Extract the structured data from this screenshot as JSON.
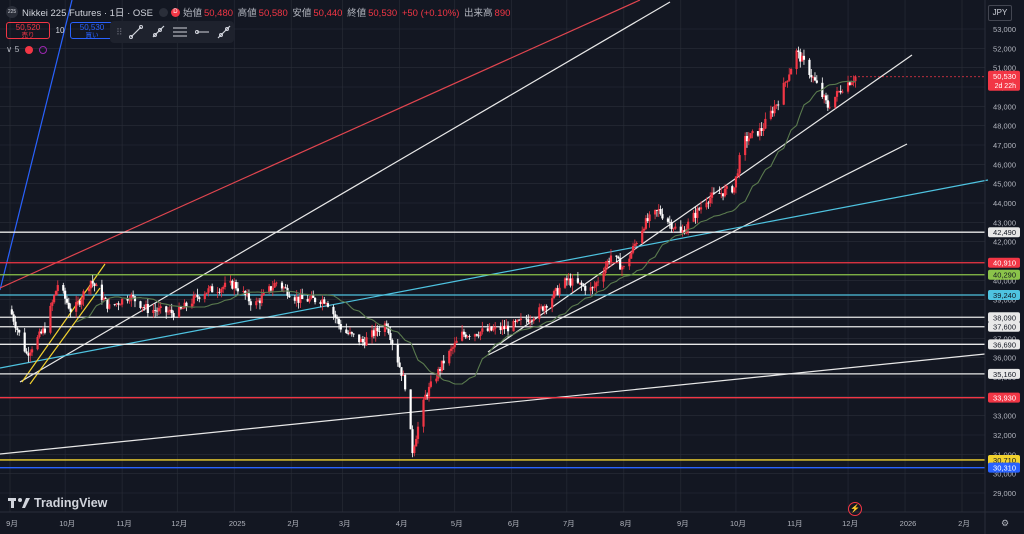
{
  "header": {
    "symbol_badge": "225",
    "title": "Nikkei 225 Futures · 1日 · OSE",
    "delayed_badge": "D",
    "ohlc": [
      {
        "label": "始値",
        "value": "50,480"
      },
      {
        "label": "高値",
        "value": "50,580"
      },
      {
        "label": "安値",
        "value": "50,440"
      },
      {
        "label": "終値",
        "value": "50,530"
      },
      {
        "label": "",
        "value": "+50 (+0.10%)"
      },
      {
        "label": "出来高",
        "value": "890"
      }
    ]
  },
  "trade": {
    "sell_price": "50,520",
    "sell_label": "売り",
    "quantity": "10",
    "buy_price": "50,530",
    "buy_label": "買い"
  },
  "indicator_row": {
    "collapse": "∨ 5"
  },
  "currency": "JPY",
  "logo_text": "TradingView",
  "colors": {
    "background": "#131722",
    "up": "#f23645",
    "down": "#ffffff",
    "grid": "#2a2e39",
    "ma": "#5a7a4e",
    "cyan": "#4ec3e0",
    "yellow": "#f2d22e",
    "red": "#f23645",
    "blue": "#2962ff",
    "green": "#8bc34a"
  },
  "chart_data": {
    "type": "candlestick",
    "yaxis": {
      "ticks": [
        29000,
        30000,
        31000,
        32000,
        33000,
        34000,
        35000,
        36000,
        37000,
        38000,
        39000,
        40000,
        41000,
        42000,
        43000,
        44000,
        45000,
        46000,
        47000,
        48000,
        49000,
        50000,
        51000,
        52000,
        53000
      ],
      "tick_labels": [
        "29,000",
        "30,000",
        "31,000",
        "32,000",
        "33,000",
        "34,000",
        "35,000",
        "36,000",
        "37,000",
        "38,000",
        "39,000",
        "40,000",
        "41,000",
        "42,000",
        "43,000",
        "44,000",
        "45,000",
        "46,000",
        "47,000",
        "48,000",
        "49,000",
        "50,000",
        "51,000",
        "52,000",
        "53,000"
      ],
      "range": [
        28600,
        53600
      ]
    },
    "xaxis": {
      "tick_labels": [
        "9月",
        "10月",
        "11月",
        "12月",
        "2025",
        "2月",
        "3月",
        "4月",
        "5月",
        "6月",
        "7月",
        "8月",
        "9月",
        "10月",
        "11月",
        "12月",
        "2026",
        "2月"
      ]
    },
    "horizontal_levels": [
      {
        "value": 42490,
        "label": "42,490",
        "color": "white"
      },
      {
        "value": 40910,
        "label": "40,910",
        "color": "red"
      },
      {
        "value": 40290,
        "label": "40,290",
        "color": "green"
      },
      {
        "value": 39240,
        "label": "39,240",
        "color": "cyan"
      },
      {
        "value": 38090,
        "label": "38,090",
        "color": "white"
      },
      {
        "value": 37600,
        "label": "37,600",
        "color": "white"
      },
      {
        "value": 36690,
        "label": "36,690",
        "color": "white"
      },
      {
        "value": 35160,
        "label": "35,160",
        "color": "white"
      },
      {
        "value": 33930,
        "label": "33,930",
        "color": "red"
      },
      {
        "value": 30710,
        "label": "30,710",
        "color": "yellow"
      },
      {
        "value": 30310,
        "label": "30,310",
        "color": "blue"
      }
    ],
    "last_price": {
      "value": 50530,
      "label": "50,530",
      "countdown": "2d 22h"
    },
    "price_path": [
      {
        "t": "2024-09-01",
        "v": 38500
      },
      {
        "t": "2024-09-10",
        "v": 36200
      },
      {
        "t": "2024-09-20",
        "v": 37500
      },
      {
        "t": "2024-09-27",
        "v": 39800
      },
      {
        "t": "2024-10-05",
        "v": 38300
      },
      {
        "t": "2024-10-15",
        "v": 40000
      },
      {
        "t": "2024-10-25",
        "v": 38600
      },
      {
        "t": "2024-11-05",
        "v": 39200
      },
      {
        "t": "2024-11-15",
        "v": 38500
      },
      {
        "t": "2024-12-01",
        "v": 38300
      },
      {
        "t": "2024-12-15",
        "v": 39400
      },
      {
        "t": "2025-01-01",
        "v": 39800
      },
      {
        "t": "2025-01-12",
        "v": 38700
      },
      {
        "t": "2025-01-24",
        "v": 39900
      },
      {
        "t": "2025-02-05",
        "v": 39000
      },
      {
        "t": "2025-02-20",
        "v": 39000
      },
      {
        "t": "2025-03-01",
        "v": 37400
      },
      {
        "t": "2025-03-12",
        "v": 36800
      },
      {
        "t": "2025-03-25",
        "v": 37800
      },
      {
        "t": "2025-04-04",
        "v": 34600
      },
      {
        "t": "2025-04-08",
        "v": 31200
      },
      {
        "t": "2025-04-15",
        "v": 34000
      },
      {
        "t": "2025-04-25",
        "v": 35800
      },
      {
        "t": "2025-05-05",
        "v": 37200
      },
      {
        "t": "2025-05-20",
        "v": 37400
      },
      {
        "t": "2025-06-01",
        "v": 37600
      },
      {
        "t": "2025-06-15",
        "v": 38300
      },
      {
        "t": "2025-07-01",
        "v": 40000
      },
      {
        "t": "2025-07-15",
        "v": 39500
      },
      {
        "t": "2025-07-25",
        "v": 41300
      },
      {
        "t": "2025-08-01",
        "v": 40600
      },
      {
        "t": "2025-08-12",
        "v": 42900
      },
      {
        "t": "2025-08-20",
        "v": 43600
      },
      {
        "t": "2025-09-01",
        "v": 42400
      },
      {
        "t": "2025-09-15",
        "v": 44200
      },
      {
        "t": "2025-09-30",
        "v": 44800
      },
      {
        "t": "2025-10-05",
        "v": 47200
      },
      {
        "t": "2025-10-15",
        "v": 47800
      },
      {
        "t": "2025-10-25",
        "v": 49500
      },
      {
        "t": "2025-11-03",
        "v": 51800
      },
      {
        "t": "2025-11-10",
        "v": 50800
      },
      {
        "t": "2025-11-20",
        "v": 49000
      },
      {
        "t": "2025-11-28",
        "v": 50000
      },
      {
        "t": "2025-12-05",
        "v": 50530
      }
    ]
  }
}
